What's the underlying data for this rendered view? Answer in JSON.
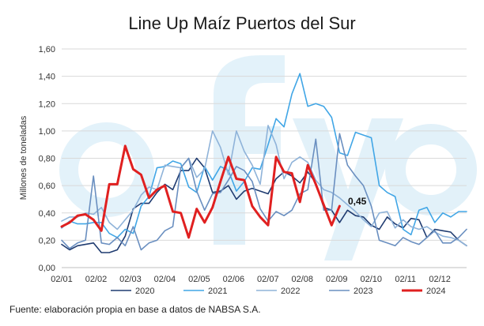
{
  "chart_data": {
    "type": "line",
    "title": "Line Up Maíz Puertos del Sur",
    "xlabel": "",
    "ylabel": "Millones de toneladas",
    "ylim": [
      0,
      1.6
    ],
    "ytick_labels": [
      "0,00",
      "0,20",
      "0,40",
      "0,60",
      "0,80",
      "1,00",
      "1,20",
      "1,40",
      "1,60"
    ],
    "xtick_labels": [
      "02/01",
      "02/02",
      "02/03",
      "02/04",
      "02/05",
      "02/06",
      "02/07",
      "02/08",
      "02/09",
      "02/10",
      "02/11",
      "02/12"
    ],
    "x_weeks": 52,
    "grid": true,
    "legend_placement": "bottom",
    "source": "Fuente: elaboración propia en base a datos de NABSA S.A.",
    "annotation": "0,45",
    "watermark": "cfyo",
    "series": [
      {
        "name": "2020",
        "color": "#1f3b70",
        "stroke": 1.6,
        "values": [
          0.17,
          0.13,
          0.16,
          0.17,
          0.18,
          0.11,
          0.11,
          0.13,
          0.23,
          0.43,
          0.47,
          0.47,
          0.55,
          0.61,
          0.57,
          0.71,
          0.71,
          0.8,
          0.73,
          0.55,
          0.56,
          0.6,
          0.5,
          0.56,
          0.58,
          0.56,
          0.54,
          0.65,
          0.7,
          0.67,
          0.62,
          0.7,
          0.62,
          0.44,
          0.42,
          0.33,
          0.42,
          0.38,
          0.37,
          0.31,
          0.28,
          0.37,
          0.32,
          0.29,
          0.36,
          0.35,
          0.22,
          0.28,
          0.27,
          0.26,
          0.2,
          0.16
        ]
      },
      {
        "name": "2021",
        "color": "#41a6e6",
        "stroke": 1.6,
        "values": [
          0.29,
          0.34,
          0.32,
          0.32,
          0.33,
          0.33,
          0.25,
          0.22,
          0.28,
          0.25,
          0.45,
          0.52,
          0.73,
          0.74,
          0.78,
          0.76,
          0.59,
          0.55,
          0.74,
          0.64,
          0.74,
          0.71,
          0.56,
          0.63,
          0.73,
          0.72,
          0.9,
          1.09,
          1.03,
          1.27,
          1.42,
          1.18,
          1.2,
          1.18,
          1.1,
          0.84,
          0.82,
          0.99,
          0.97,
          0.95,
          0.6,
          0.55,
          0.52,
          0.28,
          0.24,
          0.42,
          0.44,
          0.33,
          0.4,
          0.37,
          0.41,
          0.41
        ]
      },
      {
        "name": "2022",
        "color": "#8fb3d9",
        "stroke": 1.6,
        "values": [
          0.34,
          0.37,
          0.37,
          0.4,
          0.39,
          0.44,
          0.33,
          0.28,
          0.35,
          0.42,
          0.53,
          0.59,
          0.57,
          0.75,
          0.74,
          0.73,
          0.8,
          0.66,
          0.72,
          1.0,
          0.88,
          0.68,
          1.0,
          0.85,
          0.75,
          0.61,
          1.04,
          0.9,
          0.65,
          0.77,
          0.81,
          0.77,
          0.64,
          0.57,
          0.55,
          0.51,
          0.46,
          0.41,
          0.35,
          0.3,
          0.4,
          0.41,
          0.29,
          0.35,
          0.3,
          0.28,
          0.3,
          0.26,
          0.23,
          0.22,
          0.2,
          0.16
        ]
      },
      {
        "name": "2023",
        "color": "#6a8fc0",
        "stroke": 1.6,
        "values": [
          0.2,
          0.14,
          0.18,
          0.2,
          0.67,
          0.18,
          0.17,
          0.22,
          0.16,
          0.3,
          0.13,
          0.18,
          0.2,
          0.27,
          0.3,
          0.73,
          0.8,
          0.56,
          0.42,
          0.54,
          0.55,
          0.64,
          0.74,
          0.71,
          0.63,
          0.43,
          0.34,
          0.41,
          0.38,
          0.42,
          0.54,
          0.57,
          0.94,
          0.42,
          0.42,
          0.98,
          0.75,
          0.67,
          0.6,
          0.45,
          0.2,
          0.18,
          0.16,
          0.22,
          0.19,
          0.17,
          0.22,
          0.27,
          0.18,
          0.18,
          0.22,
          0.28
        ]
      },
      {
        "name": "2024",
        "color": "#e02020",
        "stroke": 3,
        "values": [
          0.3,
          0.33,
          0.38,
          0.39,
          0.35,
          0.27,
          0.61,
          0.61,
          0.89,
          0.72,
          0.68,
          0.51,
          0.57,
          0.6,
          0.41,
          0.4,
          0.22,
          0.43,
          0.33,
          0.44,
          0.63,
          0.81,
          0.65,
          0.64,
          0.45,
          0.37,
          0.31,
          0.81,
          0.7,
          0.69,
          0.48,
          0.75,
          0.61,
          0.46,
          0.31,
          0.45,
          null,
          null,
          null,
          null,
          null,
          null,
          null,
          null,
          null,
          null,
          null,
          null,
          null,
          null,
          null,
          null
        ]
      }
    ]
  }
}
